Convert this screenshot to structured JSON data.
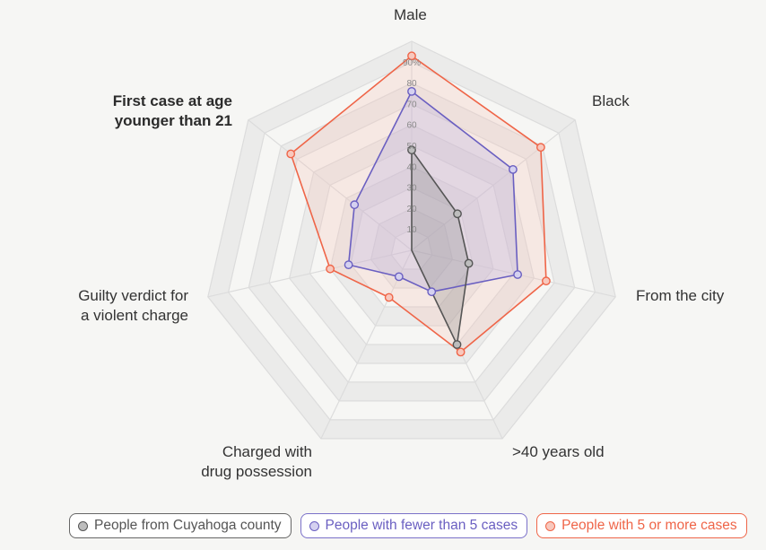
{
  "chart_data": {
    "type": "radar",
    "title": "",
    "axes": [
      "Male",
      "Black",
      "From the city",
      ">40 years old",
      "Charged with drug possession",
      "Guilty verdict for a violent charge",
      "First case at age younger than 21"
    ],
    "highlighted_axis": "First case at age younger than 21",
    "tick_labels": [
      "10",
      "20",
      "30",
      "40",
      "50",
      "60",
      "70",
      "80",
      "90%"
    ],
    "range": [
      0,
      100
    ],
    "unit": "%",
    "series": [
      {
        "name": "People from Cuyahoga county",
        "color": "#555555",
        "fill": "#8c8c8c",
        "dot_fill": "#bdbdbd",
        "values": [
          48,
          28,
          28,
          50,
          0,
          0,
          0
        ]
      },
      {
        "name": "People with fewer than 5 cases",
        "color": "#6a5fc1",
        "fill": "#b7aee0",
        "dot_fill": "#d5d1f0",
        "values": [
          76,
          62,
          52,
          22,
          14,
          31,
          35
        ]
      },
      {
        "name": "People with 5 or more cases",
        "color": "#ef6548",
        "fill": "#f6c8bd",
        "dot_fill": "#f8c8bd",
        "values": [
          93,
          79,
          66,
          54,
          25,
          40,
          74
        ]
      }
    ],
    "legend_position": "bottom",
    "grid": "alternating bands, 10 rings"
  },
  "axis_labels": {
    "male": "Male",
    "black": "Black",
    "city": "From the city",
    "age40": ">40 years old",
    "drug_1": "Charged with",
    "drug_2": "drug possession",
    "guilty_1": "Guilty verdict for",
    "guilty_2": "a violent charge",
    "first_1": "First case at age",
    "first_2": "younger than 21"
  },
  "legend": [
    {
      "label": "People from Cuyahoga county",
      "color": "#555555",
      "dot": "#bdbdbd",
      "border": "#666666"
    },
    {
      "label": "People with fewer than 5 cases",
      "color": "#6a5fc1",
      "dot": "#d5d1f0",
      "border": "#7b71c9"
    },
    {
      "label": "People with 5 or more cases",
      "color": "#ef6548",
      "dot": "#f8c8bd",
      "border": "#ef6548"
    }
  ],
  "colors": {
    "background": "#f6f6f4",
    "grid_band": "#ebebea",
    "grid_line": "#dcdcdc"
  }
}
